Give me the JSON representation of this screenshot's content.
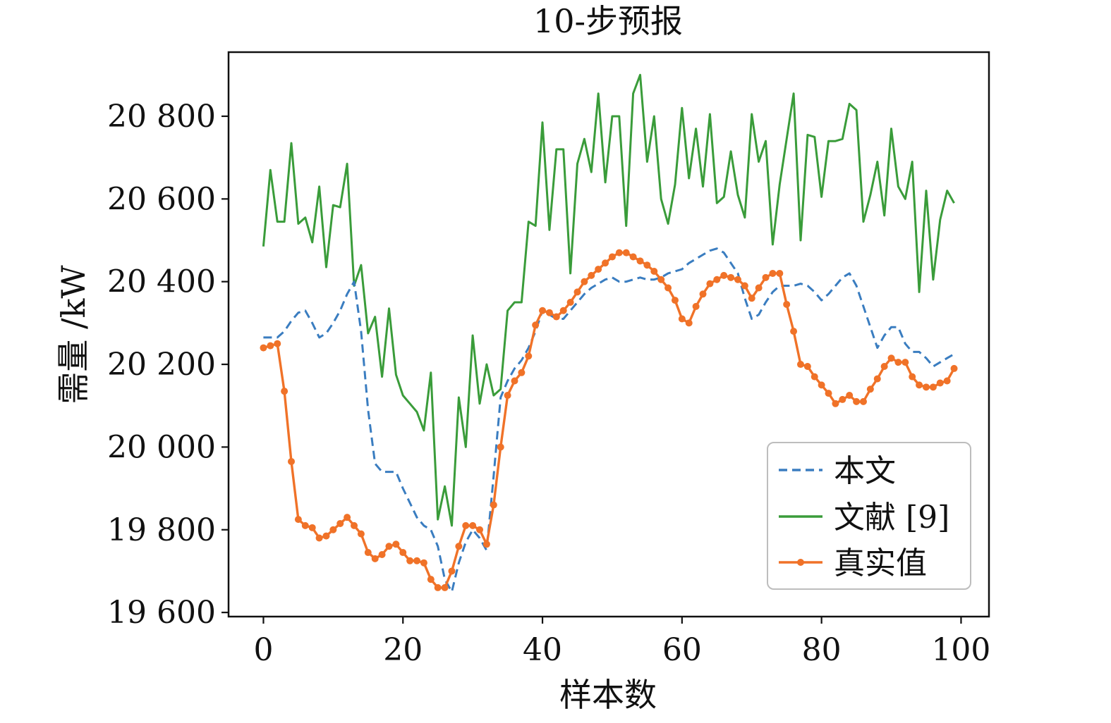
{
  "chart_data": {
    "type": "line",
    "title": "10-步预报",
    "xlabel": "样本数",
    "ylabel": "需量 /kW",
    "xlim": [
      -5,
      104
    ],
    "ylim": [
      19590,
      20955
    ],
    "xticks": [
      0,
      20,
      40,
      60,
      80,
      100
    ],
    "xtick_labels": [
      "0",
      "20",
      "40",
      "60",
      "80",
      "100"
    ],
    "yticks": [
      19600,
      19800,
      20000,
      20200,
      20400,
      20600,
      20800
    ],
    "ytick_labels": [
      "19 600",
      "19 800",
      "20 000",
      "20 200",
      "20 400",
      "20 600",
      "20 800"
    ],
    "grid": false,
    "legend_position": "lower-right",
    "x": [
      0,
      1,
      2,
      3,
      4,
      5,
      6,
      7,
      8,
      9,
      10,
      11,
      12,
      13,
      14,
      15,
      16,
      17,
      18,
      19,
      20,
      21,
      22,
      23,
      24,
      25,
      26,
      27,
      28,
      29,
      30,
      31,
      32,
      33,
      34,
      35,
      36,
      37,
      38,
      39,
      40,
      41,
      42,
      43,
      44,
      45,
      46,
      47,
      48,
      49,
      50,
      51,
      52,
      53,
      54,
      55,
      56,
      57,
      58,
      59,
      60,
      61,
      62,
      63,
      64,
      65,
      66,
      67,
      68,
      69,
      70,
      71,
      72,
      73,
      74,
      75,
      76,
      77,
      78,
      79,
      80,
      81,
      82,
      83,
      84,
      85,
      86,
      87,
      88,
      89,
      90,
      91,
      92,
      93,
      94,
      95,
      96,
      97,
      98,
      99
    ],
    "series": [
      {
        "name": "本文",
        "color": "#3a7dc0",
        "style": "dashed",
        "values": [
          20265,
          20265,
          20265,
          20280,
          20305,
          20325,
          20330,
          20300,
          20265,
          20275,
          20300,
          20330,
          20370,
          20400,
          20280,
          20090,
          19960,
          19940,
          19940,
          19940,
          19900,
          19865,
          19830,
          19810,
          19800,
          19760,
          19680,
          19650,
          19720,
          19770,
          19800,
          19780,
          19750,
          19930,
          20120,
          20160,
          20190,
          20210,
          20240,
          20280,
          20330,
          20320,
          20310,
          20310,
          20330,
          20350,
          20370,
          20385,
          20395,
          20405,
          20410,
          20400,
          20400,
          20405,
          20410,
          20405,
          20405,
          20410,
          20420,
          20425,
          20430,
          20445,
          20455,
          20465,
          20475,
          20480,
          20470,
          20445,
          20420,
          20360,
          20310,
          20320,
          20350,
          20375,
          20390,
          20390,
          20390,
          20395,
          20390,
          20375,
          20355,
          20370,
          20390,
          20410,
          20420,
          20390,
          20340,
          20290,
          20240,
          20270,
          20290,
          20290,
          20250,
          20230,
          20230,
          20215,
          20195,
          20205,
          20215,
          20225
        ]
      },
      {
        "name": "文献 [9]",
        "color": "#3a9c3a",
        "style": "solid",
        "values": [
          20485,
          20670,
          20545,
          20545,
          20735,
          20540,
          20555,
          20495,
          20630,
          20435,
          20585,
          20580,
          20685,
          20390,
          20440,
          20275,
          20315,
          20170,
          20335,
          20175,
          20125,
          20105,
          20085,
          20040,
          20180,
          19825,
          19905,
          19810,
          20120,
          20000,
          20270,
          20105,
          20200,
          20125,
          20140,
          20330,
          20350,
          20350,
          20545,
          20535,
          20785,
          20525,
          20720,
          20720,
          20420,
          20685,
          20745,
          20665,
          20855,
          20640,
          20800,
          20800,
          20535,
          20855,
          20900,
          20690,
          20800,
          20600,
          20540,
          20635,
          20820,
          20650,
          20770,
          20630,
          20805,
          20590,
          20605,
          20715,
          20610,
          20555,
          20805,
          20690,
          20740,
          20490,
          20635,
          20745,
          20855,
          20500,
          20755,
          20750,
          20605,
          20740,
          20740,
          20745,
          20830,
          20815,
          20545,
          20610,
          20690,
          20560,
          20770,
          20630,
          20600,
          20690,
          20375,
          20620,
          20405,
          20550,
          20620,
          20590
        ]
      },
      {
        "name": "真实值",
        "color": "#f07228",
        "style": "solid-marker",
        "values": [
          20240,
          20245,
          20250,
          20135,
          19965,
          19825,
          19810,
          19805,
          19780,
          19785,
          19800,
          19815,
          19830,
          19810,
          19790,
          19745,
          19730,
          19740,
          19760,
          19765,
          19745,
          19725,
          19725,
          19720,
          19680,
          19660,
          19660,
          19700,
          19760,
          19810,
          19810,
          19800,
          19765,
          19860,
          20000,
          20125,
          20160,
          20180,
          20220,
          20295,
          20330,
          20325,
          20315,
          20330,
          20350,
          20375,
          20400,
          20415,
          20430,
          20445,
          20460,
          20470,
          20470,
          20460,
          20450,
          20440,
          20425,
          20405,
          20385,
          20355,
          20310,
          20300,
          20340,
          20370,
          20395,
          20405,
          20415,
          20410,
          20405,
          20390,
          20360,
          20385,
          20410,
          20420,
          20420,
          20345,
          20280,
          20200,
          20195,
          20170,
          20150,
          20130,
          20105,
          20115,
          20125,
          20110,
          20110,
          20140,
          20165,
          20195,
          20215,
          20205,
          20205,
          20170,
          20150,
          20145,
          20145,
          20155,
          20160,
          20190
        ]
      }
    ]
  }
}
